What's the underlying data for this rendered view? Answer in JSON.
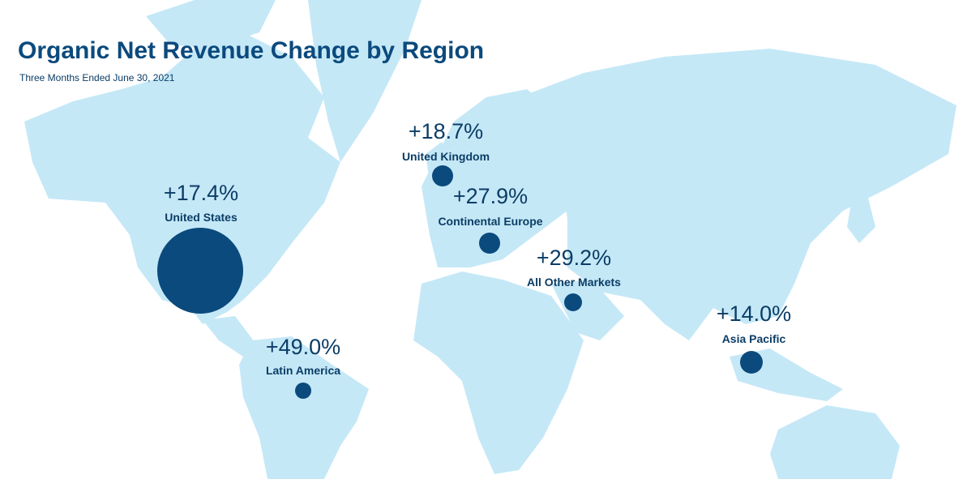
{
  "title": "Organic Net Revenue Change by Region",
  "subtitle": "Three Months Ended June 30, 2021",
  "regions": [
    {
      "name": "United States",
      "change": "+17.4%"
    },
    {
      "name": "United Kingdom",
      "change": "+18.7%"
    },
    {
      "name": "Continental Europe",
      "change": "+27.9%"
    },
    {
      "name": "All Other Markets",
      "change": "+29.2%"
    },
    {
      "name": "Asia Pacific",
      "change": "+14.0%"
    },
    {
      "name": "Latin America",
      "change": "+49.0%"
    }
  ]
}
